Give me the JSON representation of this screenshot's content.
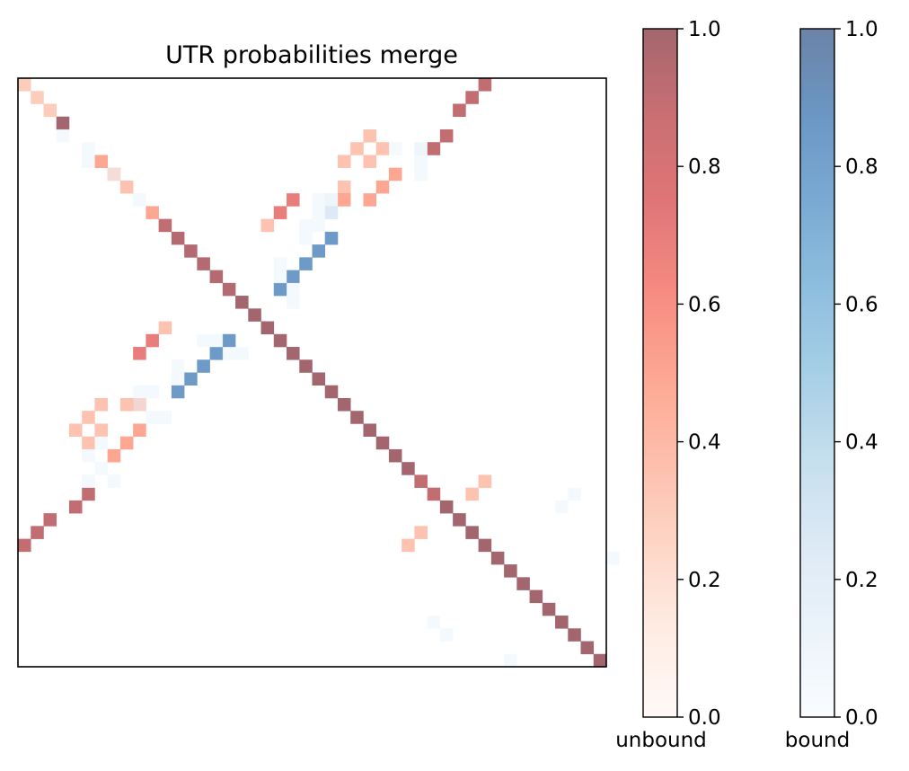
{
  "chart_data": [
    {
      "type": "heatmap",
      "title": "UTR probabilities merge",
      "n": 46,
      "xticks": [],
      "yticks": [],
      "value_range": [
        0,
        1
      ],
      "layers": [
        {
          "name": "unbound",
          "colormap": "Reds",
          "alpha": 0.6,
          "cells": [
            [
              0,
              0,
              0.3
            ],
            [
              1,
              1,
              0.3
            ],
            [
              2,
              2,
              0.3
            ],
            [
              3,
              3,
              1.0
            ],
            [
              6,
              6,
              0.5
            ],
            [
              7,
              7,
              0.4
            ],
            [
              8,
              8,
              0.35
            ],
            [
              10,
              10,
              0.5
            ],
            [
              11,
              11,
              0.9
            ],
            [
              12,
              12,
              0.95
            ],
            [
              13,
              13,
              0.95
            ],
            [
              14,
              14,
              0.95
            ],
            [
              15,
              15,
              0.95
            ],
            [
              16,
              16,
              0.95
            ],
            [
              17,
              17,
              1.0
            ],
            [
              18,
              18,
              1.0
            ],
            [
              19,
              19,
              1.0
            ],
            [
              20,
              20,
              1.0
            ],
            [
              21,
              21,
              1.0
            ],
            [
              22,
              22,
              1.0
            ],
            [
              23,
              23,
              1.0
            ],
            [
              24,
              24,
              1.0
            ],
            [
              25,
              25,
              1.0
            ],
            [
              26,
              26,
              1.0
            ],
            [
              27,
              27,
              1.0
            ],
            [
              28,
              28,
              1.0
            ],
            [
              29,
              29,
              1.0
            ],
            [
              30,
              30,
              1.0
            ],
            [
              31,
              31,
              0.9
            ],
            [
              32,
              32,
              0.9
            ],
            [
              33,
              33,
              1.0
            ],
            [
              34,
              34,
              1.0
            ],
            [
              35,
              35,
              1.0
            ],
            [
              36,
              36,
              1.0
            ],
            [
              37,
              37,
              1.0
            ],
            [
              38,
              38,
              1.0
            ],
            [
              39,
              39,
              1.0
            ],
            [
              40,
              40,
              1.0
            ],
            [
              41,
              41,
              1.0
            ],
            [
              42,
              42,
              1.0
            ],
            [
              43,
              43,
              1.0
            ],
            [
              44,
              44,
              1.0
            ],
            [
              45,
              45,
              1.0
            ],
            [
              0,
              36,
              0.9
            ],
            [
              1,
              35,
              0.9
            ],
            [
              2,
              34,
              0.9
            ],
            [
              4,
              33,
              0.9
            ],
            [
              5,
              32,
              0.9
            ],
            [
              36,
              0,
              0.9
            ],
            [
              35,
              1,
              0.9
            ],
            [
              34,
              2,
              0.9
            ],
            [
              33,
              4,
              0.9
            ],
            [
              32,
              5,
              0.9
            ],
            [
              4,
              27,
              0.35
            ],
            [
              5,
              26,
              0.35
            ],
            [
              5,
              28,
              0.35
            ],
            [
              6,
              25,
              0.35
            ],
            [
              6,
              27,
              0.35
            ],
            [
              7,
              29,
              0.5
            ],
            [
              8,
              28,
              0.5
            ],
            [
              8,
              25,
              0.35
            ],
            [
              9,
              25,
              0.5
            ],
            [
              9,
              27,
              0.5
            ],
            [
              27,
              4,
              0.35
            ],
            [
              26,
              5,
              0.35
            ],
            [
              28,
              5,
              0.35
            ],
            [
              25,
              6,
              0.35
            ],
            [
              27,
              6,
              0.35
            ],
            [
              29,
              7,
              0.5
            ],
            [
              28,
              8,
              0.5
            ],
            [
              25,
              8,
              0.35
            ],
            [
              25,
              9,
              0.5
            ],
            [
              27,
              9,
              0.5
            ],
            [
              9,
              21,
              0.7
            ],
            [
              10,
              20,
              0.7
            ],
            [
              11,
              19,
              0.35
            ],
            [
              21,
              9,
              0.7
            ],
            [
              20,
              10,
              0.7
            ],
            [
              19,
              11,
              0.35
            ],
            [
              31,
              36,
              0.35
            ],
            [
              32,
              35,
              0.35
            ],
            [
              35,
              31,
              0.35
            ],
            [
              36,
              30,
              0.35
            ]
          ]
        },
        {
          "name": "bound",
          "colormap": "Blues",
          "alpha": 0.6,
          "cells": [
            [
              4,
              3,
              0.05
            ],
            [
              5,
              5,
              0.05
            ],
            [
              6,
              5,
              0.05
            ],
            [
              7,
              7,
              0.05
            ],
            [
              9,
              9,
              0.05
            ],
            [
              5,
              29,
              0.05
            ],
            [
              5,
              31,
              0.1
            ],
            [
              6,
              31,
              0.05
            ],
            [
              7,
              31,
              0.05
            ],
            [
              9,
              23,
              0.05
            ],
            [
              9,
              24,
              0.1
            ],
            [
              10,
              24,
              0.25
            ],
            [
              10,
              23,
              0.05
            ],
            [
              11,
              23,
              0.05
            ],
            [
              11,
              22,
              0.05
            ],
            [
              12,
              22,
              0.05
            ],
            [
              12,
              24,
              0.85
            ],
            [
              13,
              23,
              0.85
            ],
            [
              14,
              22,
              0.85
            ],
            [
              15,
              21,
              0.85
            ],
            [
              16,
              20,
              0.85
            ],
            [
              14,
              20,
              0.05
            ],
            [
              15,
              20,
              0.05
            ],
            [
              16,
              21,
              0.05
            ],
            [
              17,
              21,
              0.05
            ],
            [
              20,
              16,
              0.85
            ],
            [
              21,
              15,
              0.85
            ],
            [
              22,
              14,
              0.85
            ],
            [
              23,
              13,
              0.85
            ],
            [
              24,
              12,
              0.85
            ],
            [
              20,
              15,
              0.05
            ],
            [
              20,
              14,
              0.05
            ],
            [
              21,
              16,
              0.05
            ],
            [
              21,
              17,
              0.05
            ],
            [
              22,
              12,
              0.05
            ],
            [
              23,
              12,
              0.05
            ],
            [
              24,
              10,
              0.05
            ],
            [
              24,
              9,
              0.05
            ],
            [
              25,
              9,
              0.05
            ],
            [
              26,
              11,
              0.05
            ],
            [
              26,
              10,
              0.05
            ],
            [
              29,
              5,
              0.05
            ],
            [
              31,
              5,
              0.05
            ],
            [
              31,
              7,
              0.05
            ],
            [
              30,
              6,
              0.05
            ],
            [
              28,
              6,
              0.05
            ],
            [
              32,
              43,
              0.05
            ],
            [
              33,
              42,
              0.05
            ],
            [
              42,
              32,
              0.05
            ],
            [
              43,
              33,
              0.05
            ],
            [
              45,
              38,
              0.05
            ],
            [
              37,
              46,
              0.05
            ]
          ]
        }
      ],
      "colorbars": [
        {
          "label": "unbound",
          "colormap": "Reds",
          "ticks": [
            "0.0",
            "0.2",
            "0.4",
            "0.6",
            "0.8",
            "1.0"
          ],
          "range": [
            0,
            1
          ]
        },
        {
          "label": "bound",
          "colormap": "Blues",
          "ticks": [
            "0.0",
            "0.2",
            "0.4",
            "0.6",
            "0.8",
            "1.0"
          ],
          "range": [
            0,
            1
          ]
        }
      ]
    }
  ]
}
